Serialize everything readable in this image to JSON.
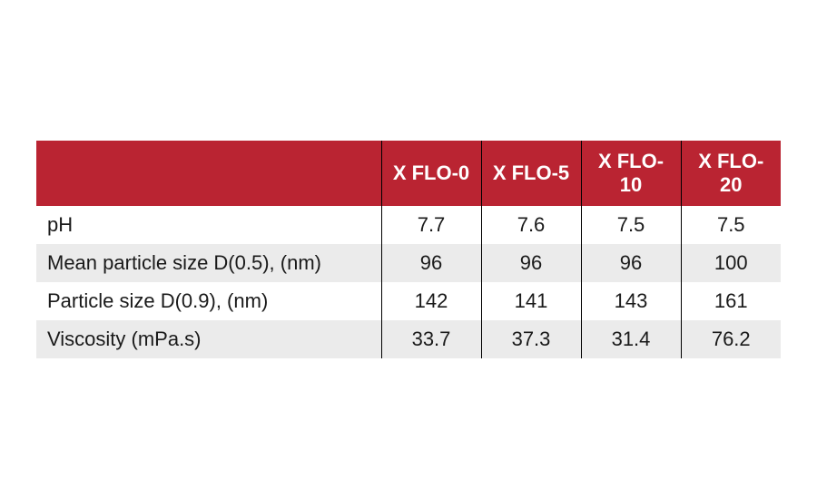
{
  "table": {
    "header_bg": "#ba2432",
    "header_fg": "#ffffff",
    "row_alt_bg": "#ebebeb",
    "columns": [
      "X FLO-0",
      "X FLO-5",
      "X FLO-10",
      "X FLO-20"
    ],
    "rows": [
      {
        "label": "pH",
        "values": [
          "7.7",
          "7.6",
          "7.5",
          "7.5"
        ]
      },
      {
        "label": "Mean particle size D(0.5), (nm)",
        "values": [
          "96",
          "96",
          "96",
          "100"
        ]
      },
      {
        "label": "Particle size D(0.9), (nm)",
        "values": [
          "142",
          "141",
          "143",
          "161"
        ]
      },
      {
        "label": "Viscosity (mPa.s)",
        "values": [
          "33.7",
          "37.3",
          "31.4",
          "76.2"
        ]
      }
    ]
  }
}
